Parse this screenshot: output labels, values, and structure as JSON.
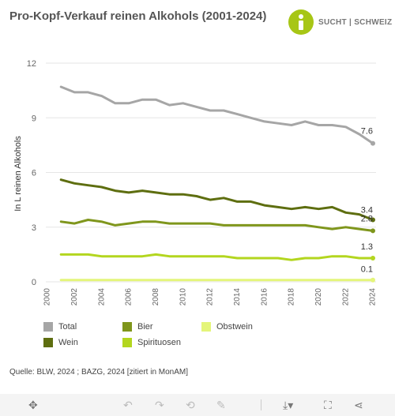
{
  "title": "Pro-Kopf-Verkauf reinen Alkohols (2001-2024)",
  "logo": {
    "text": "SUCHT | SCHWEIZ",
    "color": "#a7c615"
  },
  "chart_data": {
    "type": "line",
    "ylabel": "In L reinen Alkohols",
    "xlabel": "",
    "ylim": [
      0,
      12
    ],
    "yticks": [
      0,
      3,
      6,
      9,
      12
    ],
    "xlim": [
      2000,
      2024
    ],
    "xticks": [
      2000,
      2002,
      2004,
      2006,
      2008,
      2010,
      2012,
      2014,
      2016,
      2018,
      2020,
      2022,
      2024
    ],
    "grid": "y",
    "legend_position": "bottom",
    "series": [
      {
        "name": "Total",
        "color": "#a6a6a6",
        "x": [
          2001,
          2002,
          2003,
          2004,
          2005,
          2006,
          2007,
          2008,
          2009,
          2010,
          2011,
          2012,
          2013,
          2014,
          2015,
          2016,
          2017,
          2018,
          2019,
          2020,
          2021,
          2022,
          2023,
          2024
        ],
        "values": [
          10.7,
          10.4,
          10.4,
          10.2,
          9.8,
          9.8,
          10.0,
          10.0,
          9.7,
          9.8,
          9.6,
          9.4,
          9.4,
          9.2,
          9.0,
          8.8,
          8.7,
          8.6,
          8.8,
          8.6,
          8.6,
          8.5,
          8.1,
          7.6
        ],
        "end_label": "7.6"
      },
      {
        "name": "Wein",
        "color": "#5e6e10",
        "x": [
          2001,
          2002,
          2003,
          2004,
          2005,
          2006,
          2007,
          2008,
          2009,
          2010,
          2011,
          2012,
          2013,
          2014,
          2015,
          2016,
          2017,
          2018,
          2019,
          2020,
          2021,
          2022,
          2023,
          2024
        ],
        "values": [
          5.6,
          5.4,
          5.3,
          5.2,
          5.0,
          4.9,
          5.0,
          4.9,
          4.8,
          4.8,
          4.7,
          4.5,
          4.6,
          4.4,
          4.4,
          4.2,
          4.1,
          4.0,
          4.1,
          4.0,
          4.1,
          3.8,
          3.7,
          3.4
        ],
        "end_label": "3.4"
      },
      {
        "name": "Bier",
        "color": "#7f961c",
        "x": [
          2001,
          2002,
          2003,
          2004,
          2005,
          2006,
          2007,
          2008,
          2009,
          2010,
          2011,
          2012,
          2013,
          2014,
          2015,
          2016,
          2017,
          2018,
          2019,
          2020,
          2021,
          2022,
          2023,
          2024
        ],
        "values": [
          3.3,
          3.2,
          3.4,
          3.3,
          3.1,
          3.2,
          3.3,
          3.3,
          3.2,
          3.2,
          3.2,
          3.2,
          3.1,
          3.1,
          3.1,
          3.1,
          3.1,
          3.1,
          3.1,
          3.0,
          2.9,
          3.0,
          2.9,
          2.8
        ],
        "end_label": "2.8"
      },
      {
        "name": "Spirituosen",
        "color": "#b3d61f",
        "x": [
          2001,
          2002,
          2003,
          2004,
          2005,
          2006,
          2007,
          2008,
          2009,
          2010,
          2011,
          2012,
          2013,
          2014,
          2015,
          2016,
          2017,
          2018,
          2019,
          2020,
          2021,
          2022,
          2023,
          2024
        ],
        "values": [
          1.5,
          1.5,
          1.5,
          1.4,
          1.4,
          1.4,
          1.4,
          1.5,
          1.4,
          1.4,
          1.4,
          1.4,
          1.4,
          1.3,
          1.3,
          1.3,
          1.3,
          1.2,
          1.3,
          1.3,
          1.4,
          1.4,
          1.3,
          1.3
        ],
        "end_label": "1.3"
      },
      {
        "name": "Obstwein",
        "color": "#e4f57a",
        "x": [
          2001,
          2002,
          2003,
          2004,
          2005,
          2006,
          2007,
          2008,
          2009,
          2010,
          2011,
          2012,
          2013,
          2014,
          2015,
          2016,
          2017,
          2018,
          2019,
          2020,
          2021,
          2022,
          2023,
          2024
        ],
        "values": [
          0.1,
          0.1,
          0.1,
          0.1,
          0.1,
          0.1,
          0.1,
          0.1,
          0.1,
          0.1,
          0.1,
          0.1,
          0.1,
          0.1,
          0.1,
          0.1,
          0.1,
          0.1,
          0.1,
          0.1,
          0.1,
          0.1,
          0.1,
          0.1
        ],
        "end_label": "0.1"
      }
    ]
  },
  "legend": [
    {
      "label": "Total",
      "color": "#a6a6a6"
    },
    {
      "label": "Bier",
      "color": "#7f961c"
    },
    {
      "label": "Obstwein",
      "color": "#e4f57a"
    },
    {
      "label": "Wein",
      "color": "#5e6e10"
    },
    {
      "label": "Spirituosen",
      "color": "#b3d61f"
    }
  ],
  "source": "Quelle: BLW, 2024 ;  BAZG, 2024 [zitiert in MonAM]",
  "toolbar": {
    "icons": [
      "move-icon",
      "undo-icon",
      "redo-icon",
      "reset-icon",
      "pen-icon",
      "download-icon",
      "fullscreen-icon",
      "share-icon"
    ]
  }
}
